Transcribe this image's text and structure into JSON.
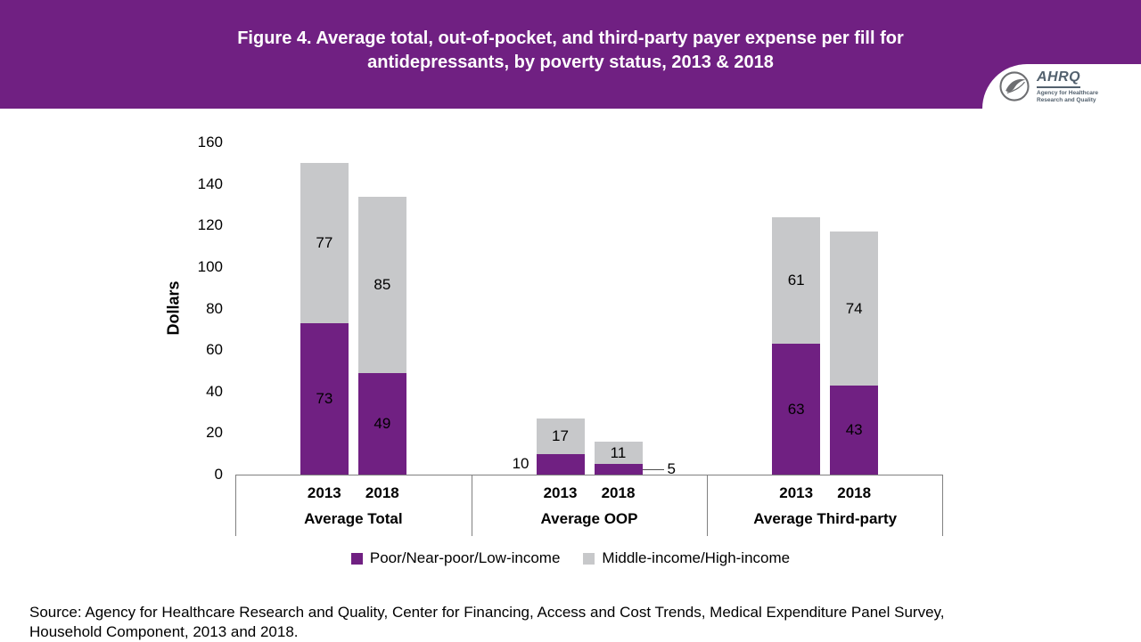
{
  "colors": {
    "header_bg": "#702082",
    "axis_line": "#808080"
  },
  "header": {
    "title_line1": "Figure 4. Average total, out-of-pocket, and third-party payer expense per fill for",
    "title_line2": "antidepressants, by poverty status, 2013 & 2018"
  },
  "logo": {
    "acronym": "AHRQ",
    "tagline_line1": "Agency for Healthcare",
    "tagline_line2": "Research and Quality"
  },
  "chart_data": {
    "type": "bar",
    "stacked": true,
    "title": "Figure 4. Average total, out-of-pocket, and third-party payer expense per fill for antidepressants, by poverty status, 2013 & 2018",
    "ylabel": "Dollars",
    "ylim": [
      0,
      160
    ],
    "yticks": [
      0,
      20,
      40,
      60,
      80,
      100,
      120,
      140,
      160
    ],
    "group_labels": [
      "Average Total",
      "Average OOP",
      "Average Third-party"
    ],
    "bar_labels": [
      "2013",
      "2018"
    ],
    "series": [
      {
        "name": "Poor/Near-poor/Low-income",
        "color": "#702082",
        "values": [
          [
            73,
            49
          ],
          [
            10,
            5
          ],
          [
            63,
            43
          ]
        ]
      },
      {
        "name": "Middle-income/High-income",
        "color": "#c7c8ca",
        "values": [
          [
            77,
            85
          ],
          [
            17,
            11
          ],
          [
            61,
            74
          ]
        ]
      }
    ],
    "legend_position": "bottom",
    "grid": false
  },
  "source": "Source: Agency for Healthcare Research and Quality, Center for Financing, Access and Cost Trends, Medical Expenditure Panel Survey, Household Component, 2013 and 2018."
}
